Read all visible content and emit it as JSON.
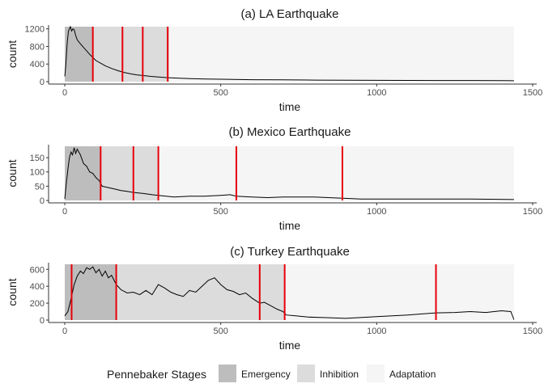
{
  "chart_data": [
    {
      "type": "line",
      "title": "(a) LA Earthquake",
      "xlabel": "time",
      "ylabel": "count",
      "xlim": [
        0,
        1440
      ],
      "ylim": [
        0,
        1250
      ],
      "xticks": [
        0,
        500,
        1000,
        1500
      ],
      "xtick_labels": [
        "0",
        "500",
        "1000",
        "1500"
      ],
      "yticks": [
        0,
        400,
        800,
        1200
      ],
      "ytick_labels": [
        "0",
        "400",
        "800",
        "1200"
      ],
      "stages": [
        {
          "stage": "Emergency",
          "start": 0,
          "end": 90
        },
        {
          "stage": "Inhibition",
          "start": 90,
          "end": 335
        },
        {
          "stage": "Adaptation",
          "start": 335,
          "end": 1440
        }
      ],
      "breakpoints": [
        90,
        185,
        250,
        330
      ],
      "series": [
        {
          "x": [
            0,
            3,
            8,
            12,
            18,
            22,
            26,
            30,
            35,
            40,
            50,
            60,
            70,
            80,
            90,
            100,
            115,
            130,
            150,
            170,
            190,
            210,
            230,
            250,
            275,
            300,
            330,
            360,
            400,
            450,
            500,
            600,
            700,
            800,
            900,
            1000,
            1100,
            1200,
            1300,
            1400,
            1440
          ],
          "y": [
            120,
            350,
            900,
            1150,
            1250,
            1150,
            1200,
            1180,
            1050,
            950,
            860,
            780,
            700,
            620,
            550,
            480,
            420,
            360,
            300,
            250,
            210,
            180,
            155,
            140,
            120,
            105,
            90,
            80,
            70,
            60,
            55,
            45,
            40,
            35,
            32,
            30,
            28,
            25,
            25,
            22,
            20
          ]
        }
      ]
    },
    {
      "type": "line",
      "title": "(b) Mexico Earthquake",
      "xlabel": "time",
      "ylabel": "count",
      "xlim": [
        0,
        1440
      ],
      "ylim": [
        0,
        190
      ],
      "xticks": [
        0,
        500,
        1000,
        1500
      ],
      "xtick_labels": [
        "0",
        "500",
        "1000",
        "1500"
      ],
      "yticks": [
        0,
        50,
        100,
        150
      ],
      "ytick_labels": [
        "0",
        "50",
        "100",
        "150"
      ],
      "stages": [
        {
          "stage": "Emergency",
          "start": 0,
          "end": 115
        },
        {
          "stage": "Inhibition",
          "start": 115,
          "end": 300
        },
        {
          "stage": "Adaptation",
          "start": 300,
          "end": 1440
        }
      ],
      "breakpoints": [
        115,
        220,
        300,
        550,
        890
      ],
      "series": [
        {
          "x": [
            0,
            5,
            10,
            15,
            20,
            25,
            30,
            35,
            40,
            50,
            60,
            70,
            80,
            90,
            100,
            110,
            120,
            140,
            160,
            180,
            200,
            220,
            250,
            280,
            300,
            350,
            400,
            450,
            500,
            530,
            550,
            600,
            650,
            700,
            800,
            890,
            950,
            1000,
            1100,
            1200,
            1300,
            1440
          ],
          "y": [
            5,
            60,
            110,
            150,
            170,
            160,
            185,
            165,
            180,
            160,
            130,
            120,
            100,
            95,
            80,
            70,
            50,
            45,
            40,
            35,
            32,
            28,
            25,
            20,
            18,
            12,
            15,
            15,
            18,
            20,
            15,
            12,
            10,
            12,
            12,
            8,
            5,
            5,
            5,
            5,
            5,
            3
          ]
        }
      ]
    },
    {
      "type": "line",
      "title": "(c) Turkey Earthquake",
      "xlabel": "time",
      "ylabel": "count",
      "xlim": [
        0,
        1440
      ],
      "ylim": [
        0,
        660
      ],
      "xticks": [
        0,
        500,
        1000,
        1500
      ],
      "xtick_labels": [
        "0",
        "500",
        "1000",
        "1500"
      ],
      "yticks": [
        0,
        200,
        400,
        600
      ],
      "ytick_labels": [
        "0",
        "200",
        "400",
        "600"
      ],
      "stages": [
        {
          "stage": "Emergency",
          "start": 0,
          "end": 165
        },
        {
          "stage": "Inhibition",
          "start": 165,
          "end": 705
        },
        {
          "stage": "Adaptation",
          "start": 705,
          "end": 1440
        }
      ],
      "breakpoints": [
        22,
        165,
        625,
        705,
        1190
      ],
      "series": [
        {
          "x": [
            0,
            10,
            20,
            30,
            40,
            50,
            60,
            70,
            80,
            90,
            100,
            110,
            120,
            130,
            140,
            150,
            165,
            180,
            200,
            220,
            240,
            260,
            280,
            300,
            320,
            340,
            360,
            380,
            400,
            420,
            440,
            460,
            480,
            500,
            520,
            540,
            560,
            580,
            600,
            625,
            640,
            660,
            680,
            700,
            710,
            740,
            780,
            830,
            900,
            1000,
            1100,
            1190,
            1250,
            1300,
            1350,
            1400,
            1430,
            1440
          ],
          "y": [
            50,
            100,
            250,
            420,
            520,
            580,
            550,
            620,
            600,
            630,
            560,
            600,
            520,
            580,
            500,
            530,
            420,
            360,
            320,
            330,
            300,
            350,
            300,
            420,
            380,
            330,
            300,
            280,
            350,
            330,
            400,
            470,
            500,
            420,
            360,
            340,
            300,
            320,
            260,
            200,
            210,
            170,
            130,
            100,
            60,
            50,
            35,
            30,
            20,
            40,
            60,
            85,
            90,
            100,
            90,
            110,
            100,
            5
          ]
        }
      ]
    }
  ],
  "legend": {
    "title": "Pennebaker Stages",
    "items": [
      {
        "label": "Emergency",
        "color": "#bdbdbd"
      },
      {
        "label": "Inhibition",
        "color": "#dcdcdc"
      },
      {
        "label": "Adaptation",
        "color": "#f5f5f5"
      }
    ]
  },
  "colors": {
    "line": "#000000",
    "breakpoint": "#e8000b",
    "axis": "#333333"
  }
}
